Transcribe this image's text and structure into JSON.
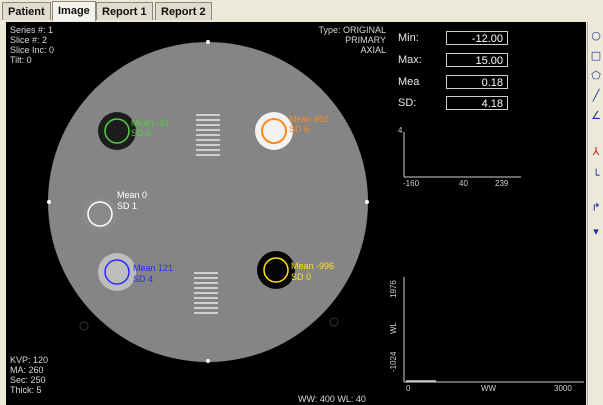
{
  "tabs": [
    {
      "label": "Patient"
    },
    {
      "label": "Image"
    },
    {
      "label": "Report 1"
    },
    {
      "label": "Report 2"
    }
  ],
  "overlay": {
    "top_left": [
      "Series #: 1",
      "Slice #: 2",
      "Slice Inc: 0",
      "Tilt: 0"
    ],
    "top_right": [
      "Type: ORIGINAL",
      "PRIMARY",
      "AXIAL"
    ],
    "bottom_left": [
      "KVP: 120",
      "MA: 260",
      "Sec: 250",
      "Thick: 5"
    ],
    "bottom_right": "WW: 400  WL: 40"
  },
  "stats": {
    "min_label": "Min:",
    "min_value": "-12.00",
    "max_label": "Max:",
    "max_value": "15.00",
    "mean_label": "Mea",
    "mean_value": "0.18",
    "sd_label": "SD:",
    "sd_value": "4.18"
  },
  "rois": [
    {
      "mean": "Mean -34",
      "sd": "SD 0",
      "color": "#4ed040"
    },
    {
      "mean": "Mean 916",
      "sd": "SD 6",
      "color": "#ff8a20"
    },
    {
      "mean": "Mean 0",
      "sd": "SD 1",
      "color": "#ffffff"
    },
    {
      "mean": "Mean 121",
      "sd": "SD 4",
      "color": "#2a2aff"
    },
    {
      "mean": "Mean -996",
      "sd": "SD 0",
      "color": "#ffe020"
    }
  ],
  "histogram_top": {
    "x_ticks": [
      "-160",
      "40",
      "239"
    ],
    "y_tick": "4"
  },
  "histogram_bottom": {
    "x_ticks": [
      "0",
      "WW",
      "3000"
    ],
    "y_labels": [
      "1976",
      "WL",
      "-1024"
    ]
  },
  "toolbar_icons": [
    "ellipse-roi-icon",
    "rectangle-roi-icon",
    "polygon-roi-icon",
    "line-icon",
    "angle-icon",
    "profile-icon",
    "ruler-icon",
    "arrow-icon",
    "delete-icon"
  ]
}
